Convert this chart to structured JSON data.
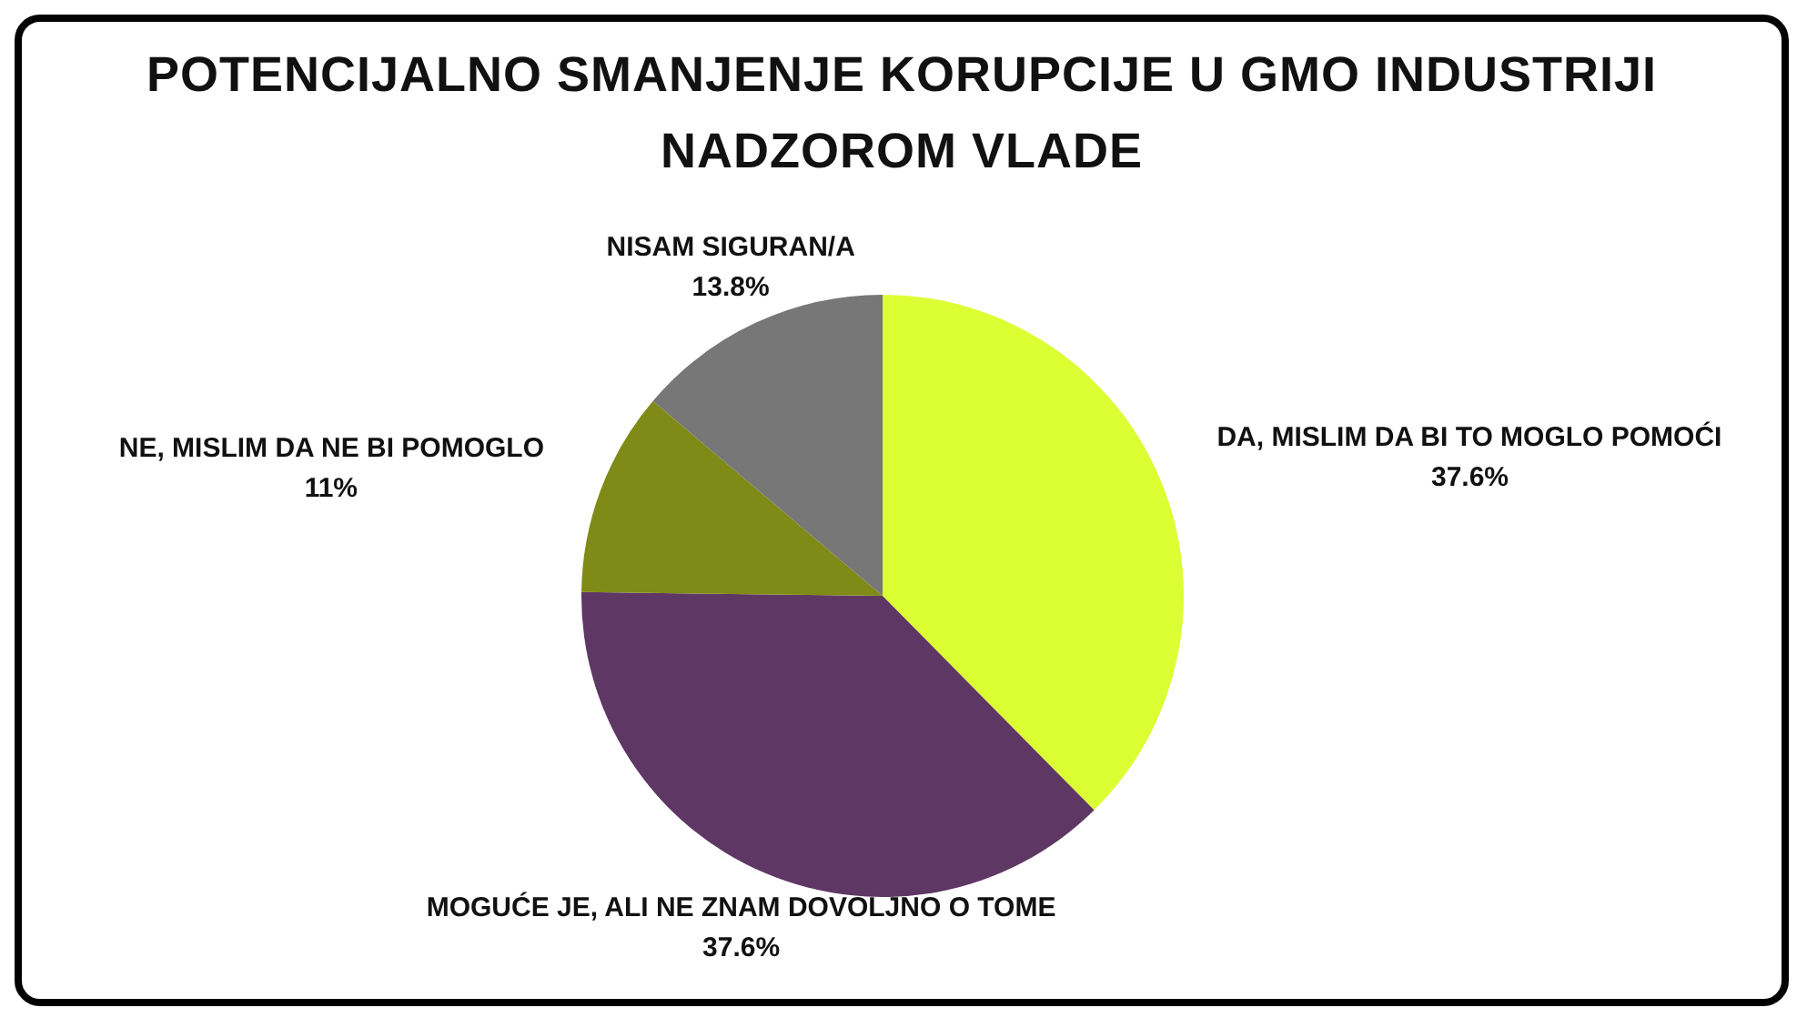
{
  "chart_data": {
    "type": "pie",
    "title": "POTENCIJALNO SMANJENJE KORUPCIJE U GMO INDUSTRIJI NADZOROM VLADE",
    "categories": [
      "DA, MISLIM DA BI TO MOGLO POMOĆI",
      "MOGUĆE JE, ALI NE ZNAM DOVOLJNO O TOME",
      "NE, MISLIM DA NE BI POMOGLO",
      "NISAM SIGURAN/A"
    ],
    "values": [
      37.6,
      37.6,
      11,
      13.8
    ],
    "value_labels": [
      "37.6%",
      "37.6%",
      "11%",
      "13.8%"
    ],
    "colors": [
      "#dcff33",
      "#5e3764",
      "#7f8a17",
      "#777777"
    ]
  }
}
